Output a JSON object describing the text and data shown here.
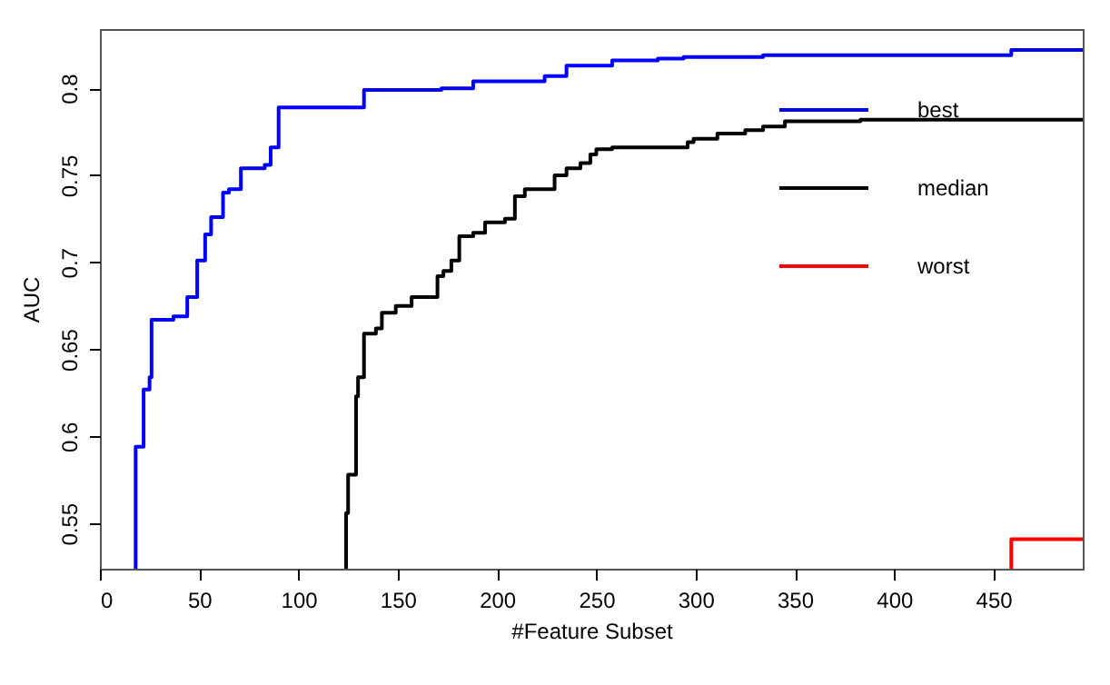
{
  "chart_data": {
    "type": "step",
    "xlabel": "#Feature Subset",
    "ylabel": "AUC",
    "xlim": [
      0,
      495
    ],
    "ylim": [
      0.524,
      0.834
    ],
    "xticks": [
      0,
      50,
      100,
      150,
      200,
      250,
      300,
      350,
      400,
      450
    ],
    "yticks": [
      0.55,
      0.6,
      0.65,
      0.7,
      0.75,
      0.8
    ],
    "grid": false,
    "legend": "top right",
    "line_style": "solid",
    "marker": "none",
    "series": [
      {
        "name": "best",
        "color": "#0000ff",
        "x": [
          18,
          18,
          22,
          25,
          26,
          37,
          44,
          49,
          53,
          56,
          62,
          65,
          71,
          83,
          86,
          90,
          133,
          172,
          188,
          224,
          235,
          258,
          281,
          294,
          334,
          459,
          495
        ],
        "values": [
          0.524,
          0.594,
          0.627,
          0.634,
          0.667,
          0.669,
          0.68,
          0.701,
          0.716,
          0.726,
          0.74,
          0.742,
          0.754,
          0.756,
          0.766,
          0.789,
          0.799,
          0.8,
          0.804,
          0.807,
          0.813,
          0.816,
          0.817,
          0.818,
          0.819,
          0.822,
          0.822
        ]
      },
      {
        "name": "median",
        "color": "#000000",
        "x": [
          124,
          124,
          125,
          129,
          130,
          133,
          139,
          142,
          149,
          157,
          170,
          173,
          177,
          181,
          188,
          194,
          204,
          209,
          214,
          229,
          235,
          242,
          247,
          250,
          258,
          296,
          299,
          311,
          325,
          334,
          345,
          383,
          495
        ],
        "values": [
          0.524,
          0.556,
          0.578,
          0.623,
          0.634,
          0.659,
          0.662,
          0.671,
          0.675,
          0.68,
          0.692,
          0.695,
          0.701,
          0.715,
          0.717,
          0.723,
          0.725,
          0.738,
          0.742,
          0.75,
          0.754,
          0.757,
          0.762,
          0.765,
          0.766,
          0.769,
          0.771,
          0.774,
          0.776,
          0.778,
          0.781,
          0.782,
          0.782
        ]
      },
      {
        "name": "worst",
        "color": "#ff0000",
        "x": [
          459,
          459,
          495
        ],
        "values": [
          0.524,
          0.541,
          0.541
        ]
      }
    ]
  }
}
